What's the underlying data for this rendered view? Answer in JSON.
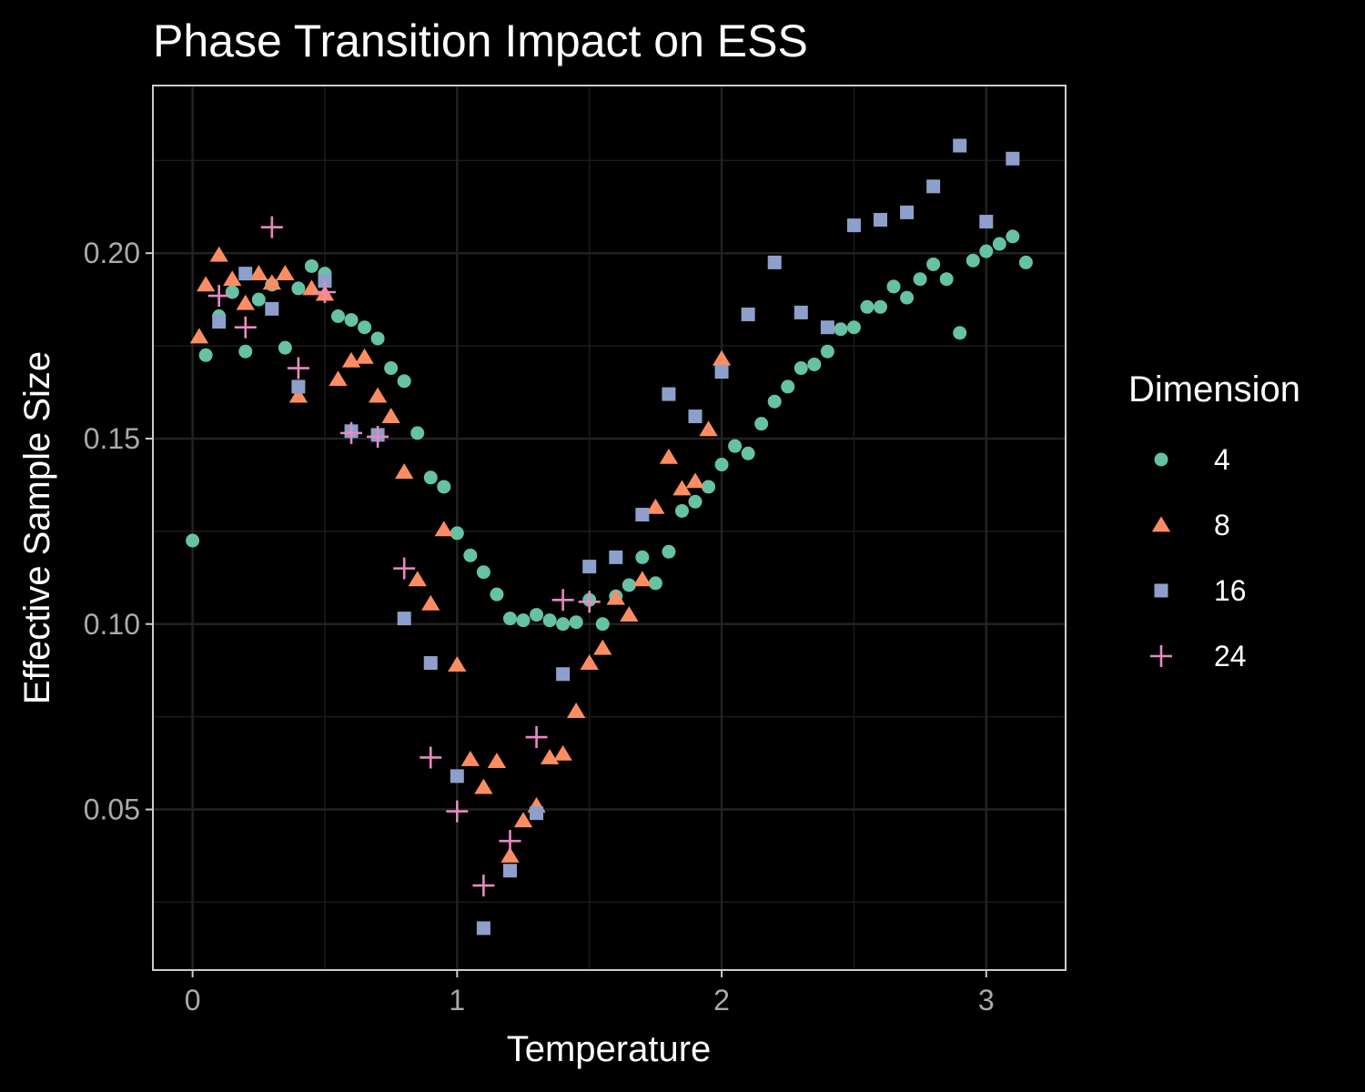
{
  "chart_data": {
    "type": "scatter",
    "title": "Phase Transition Impact on ESS",
    "xlabel": "Temperature",
    "ylabel": "Effective Sample Size",
    "xlim": [
      -0.15,
      3.3
    ],
    "ylim": [
      0.0067,
      0.2452
    ],
    "x_ticks": [
      0,
      1,
      2,
      3
    ],
    "x_tick_labels": [
      "0",
      "1",
      "2",
      "3"
    ],
    "y_ticks": [
      0.05,
      0.1,
      0.15,
      0.2
    ],
    "y_tick_labels": [
      "0.05",
      "0.10",
      "0.15",
      "0.20"
    ],
    "grid": true,
    "legend": {
      "title": "Dimension",
      "position": "right"
    },
    "series": [
      {
        "name": "4",
        "shape": "circle",
        "color": "#66C2A5",
        "points": [
          [
            0.0,
            0.1225
          ],
          [
            0.05,
            0.1725
          ],
          [
            0.1,
            0.183
          ],
          [
            0.15,
            0.1895
          ],
          [
            0.2,
            0.1735
          ],
          [
            0.25,
            0.1875
          ],
          [
            0.3,
            0.1915
          ],
          [
            0.35,
            0.1745
          ],
          [
            0.4,
            0.1905
          ],
          [
            0.45,
            0.1965
          ],
          [
            0.5,
            0.1945
          ],
          [
            0.55,
            0.183
          ],
          [
            0.6,
            0.182
          ],
          [
            0.65,
            0.18
          ],
          [
            0.7,
            0.177
          ],
          [
            0.75,
            0.169
          ],
          [
            0.8,
            0.1655
          ],
          [
            0.85,
            0.1515
          ],
          [
            0.9,
            0.1395
          ],
          [
            0.95,
            0.137
          ],
          [
            1.0,
            0.1245
          ],
          [
            1.05,
            0.1185
          ],
          [
            1.1,
            0.114
          ],
          [
            1.15,
            0.108
          ],
          [
            1.2,
            0.1015
          ],
          [
            1.25,
            0.101
          ],
          [
            1.3,
            0.1025
          ],
          [
            1.35,
            0.101
          ],
          [
            1.4,
            0.1
          ],
          [
            1.45,
            0.1005
          ],
          [
            1.5,
            0.1065
          ],
          [
            1.55,
            0.1
          ],
          [
            1.6,
            0.1075
          ],
          [
            1.65,
            0.1105
          ],
          [
            1.7,
            0.118
          ],
          [
            1.75,
            0.111
          ],
          [
            1.8,
            0.1195
          ],
          [
            1.85,
            0.1305
          ],
          [
            1.9,
            0.133
          ],
          [
            1.95,
            0.137
          ],
          [
            2.0,
            0.143
          ],
          [
            2.05,
            0.148
          ],
          [
            2.1,
            0.146
          ],
          [
            2.15,
            0.154
          ],
          [
            2.2,
            0.16
          ],
          [
            2.25,
            0.164
          ],
          [
            2.3,
            0.169
          ],
          [
            2.35,
            0.17
          ],
          [
            2.4,
            0.1735
          ],
          [
            2.45,
            0.1795
          ],
          [
            2.5,
            0.18
          ],
          [
            2.55,
            0.1855
          ],
          [
            2.6,
            0.1855
          ],
          [
            2.65,
            0.191
          ],
          [
            2.7,
            0.188
          ],
          [
            2.75,
            0.193
          ],
          [
            2.8,
            0.197
          ],
          [
            2.85,
            0.193
          ],
          [
            2.9,
            0.1785
          ],
          [
            2.95,
            0.198
          ],
          [
            3.0,
            0.2005
          ],
          [
            3.05,
            0.2025
          ],
          [
            3.1,
            0.2045
          ],
          [
            3.15,
            0.1975
          ]
        ]
      },
      {
        "name": "8",
        "shape": "triangle",
        "color": "#FC8D62",
        "points": [
          [
            0.025,
            0.1775
          ],
          [
            0.05,
            0.1915
          ],
          [
            0.1,
            0.1995
          ],
          [
            0.15,
            0.193
          ],
          [
            0.2,
            0.1865
          ],
          [
            0.25,
            0.1945
          ],
          [
            0.3,
            0.192
          ],
          [
            0.35,
            0.1945
          ],
          [
            0.4,
            0.1615
          ],
          [
            0.45,
            0.1905
          ],
          [
            0.5,
            0.189
          ],
          [
            0.55,
            0.166
          ],
          [
            0.6,
            0.171
          ],
          [
            0.65,
            0.172
          ],
          [
            0.7,
            0.1615
          ],
          [
            0.75,
            0.156
          ],
          [
            0.8,
            0.141
          ],
          [
            0.85,
            0.112
          ],
          [
            0.9,
            0.1055
          ],
          [
            0.95,
            0.1255
          ],
          [
            1.0,
            0.089
          ],
          [
            1.05,
            0.0635
          ],
          [
            1.1,
            0.056
          ],
          [
            1.15,
            0.063
          ],
          [
            1.2,
            0.0375
          ],
          [
            1.25,
            0.047
          ],
          [
            1.3,
            0.051
          ],
          [
            1.35,
            0.064
          ],
          [
            1.4,
            0.065
          ],
          [
            1.45,
            0.0765
          ],
          [
            1.5,
            0.0895
          ],
          [
            1.55,
            0.0935
          ],
          [
            1.6,
            0.107
          ],
          [
            1.65,
            0.1025
          ],
          [
            1.7,
            0.112
          ],
          [
            1.75,
            0.1315
          ],
          [
            1.8,
            0.145
          ],
          [
            1.85,
            0.1365
          ],
          [
            1.9,
            0.1385
          ],
          [
            1.95,
            0.1525
          ],
          [
            2.0,
            0.1715
          ]
        ]
      },
      {
        "name": "16",
        "shape": "square",
        "color": "#8DA0CB",
        "points": [
          [
            0.1,
            0.1815
          ],
          [
            0.2,
            0.1945
          ],
          [
            0.3,
            0.185
          ],
          [
            0.4,
            0.164
          ],
          [
            0.5,
            0.1925
          ],
          [
            0.6,
            0.152
          ],
          [
            0.7,
            0.151
          ],
          [
            0.8,
            0.1015
          ],
          [
            0.9,
            0.0895
          ],
          [
            1.0,
            0.059
          ],
          [
            1.1,
            0.018
          ],
          [
            1.2,
            0.0335
          ],
          [
            1.3,
            0.049
          ],
          [
            1.4,
            0.0865
          ],
          [
            1.5,
            0.1155
          ],
          [
            1.6,
            0.118
          ],
          [
            1.7,
            0.1295
          ],
          [
            1.8,
            0.162
          ],
          [
            1.9,
            0.156
          ],
          [
            2.0,
            0.168
          ],
          [
            2.1,
            0.1835
          ],
          [
            2.2,
            0.1975
          ],
          [
            2.3,
            0.184
          ],
          [
            2.4,
            0.18
          ],
          [
            2.5,
            0.2075
          ],
          [
            2.6,
            0.209
          ],
          [
            2.7,
            0.211
          ],
          [
            2.8,
            0.218
          ],
          [
            2.9,
            0.229
          ],
          [
            3.0,
            0.2085
          ],
          [
            3.1,
            0.2255
          ]
        ]
      },
      {
        "name": "24",
        "shape": "plus",
        "color": "#E78AC3",
        "points": [
          [
            0.1,
            0.1885
          ],
          [
            0.2,
            0.18
          ],
          [
            0.3,
            0.207
          ],
          [
            0.4,
            0.169
          ],
          [
            0.5,
            0.1895
          ],
          [
            0.6,
            0.1515
          ],
          [
            0.7,
            0.1505
          ],
          [
            0.8,
            0.115
          ],
          [
            0.9,
            0.064
          ],
          [
            1.0,
            0.0495
          ],
          [
            1.1,
            0.0295
          ],
          [
            1.2,
            0.0415
          ],
          [
            1.3,
            0.0695
          ],
          [
            1.4,
            0.1065
          ],
          [
            1.5,
            0.106
          ]
        ]
      }
    ]
  }
}
